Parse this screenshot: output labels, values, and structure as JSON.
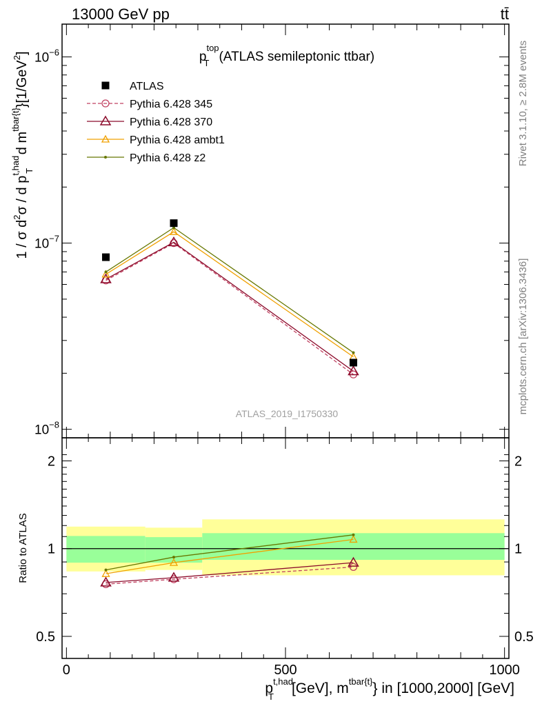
{
  "header": {
    "left": "13000 GeV pp",
    "right": "tt̄"
  },
  "side_labels": {
    "rivet": "Rivet 3.1.10, ≥ 2.8M events",
    "mcplots": "mcplots.cern.ch [arXiv:1306.3436]"
  },
  "chart_data": {
    "type": "line",
    "title": "p_T^top (ATLAS semileptonic ttbar)",
    "title_parts": {
      "main": "p",
      "sub": "T",
      "sup": "top",
      "rest": "(ATLAS semileptonic ttbar)"
    },
    "watermark": "ATLAS_2019_I1750330",
    "xlabel": "p_T^{t,had} [GeV], m^{tbar{t}} in [1000,2000] [GeV]",
    "xlabel_parts": {
      "p": "p",
      "psub": "T",
      "psup": "t,had",
      "mid": "[GeV], m",
      "msup": "tbar{t}",
      "end": "} in [1000,2000] [GeV]"
    },
    "ylabel": "1 / σ d²σ / d p_T^{t,had} d m^{tbar{t}}[1/GeV²]",
    "ylabel_parts": {
      "a": "1 / σ d",
      "a2": "2",
      "b": "σ / d p",
      "bsub": "T",
      "bsup": "t,had",
      "c": " d m",
      "csup": "tbar{t}",
      "d": "}[1/GeV",
      "d2": "2",
      "e": "]"
    },
    "ratio_ylabel": "Ratio to ATLAS",
    "xlim": [
      -10,
      1010
    ],
    "ylim": [
      9e-09,
      1.5e-06
    ],
    "yscale": "log",
    "ratio_ylim": [
      0.42,
      2.4
    ],
    "x_ticks": [
      {
        "value": 0,
        "label": "0"
      },
      {
        "value": 500,
        "label": "500"
      },
      {
        "value": 1000,
        "label": "1000"
      }
    ],
    "y_ticks": [
      {
        "value": 1e-08,
        "base": "10",
        "exp": "−8"
      },
      {
        "value": 1e-07,
        "base": "10",
        "exp": "−7"
      },
      {
        "value": 1e-06,
        "base": "10",
        "exp": "−6"
      }
    ],
    "ratio_ticks": [
      {
        "value": 0.5,
        "label": "0.5"
      },
      {
        "value": 1,
        "label": "1"
      },
      {
        "value": 2,
        "label": "2"
      }
    ],
    "bins": [
      {
        "lo": 0,
        "hi": 180,
        "x": 90
      },
      {
        "lo": 180,
        "hi": 310,
        "x": 245
      },
      {
        "lo": 310,
        "hi": 1000,
        "x": 655
      }
    ],
    "data": {
      "name": "ATLAS",
      "color": "#000000",
      "values": [
        8.4e-08,
        1.28e-07,
        2.28e-08
      ],
      "band_inner": [
        [
          0.895,
          1.105
        ],
        [
          0.895,
          1.095
        ],
        [
          0.915,
          1.13
        ]
      ],
      "band_outer": [
        [
          0.835,
          1.19
        ],
        [
          0.845,
          1.18
        ],
        [
          0.81,
          1.26
        ]
      ]
    },
    "band_colors": {
      "inner": "#99ff99",
      "outer": "#ffff99"
    },
    "series": [
      {
        "name": "Pythia 6.428 345",
        "color": "#c04060",
        "style": "dashed",
        "marker": "circle",
        "values": [
          6.3e-08,
          1e-07,
          1.97e-08
        ],
        "ratio": [
          0.755,
          0.785,
          0.865
        ]
      },
      {
        "name": "Pythia 6.428 370",
        "color": "#8b0a2a",
        "style": "solid",
        "marker": "triangle-big",
        "values": [
          6.4e-08,
          1.01e-07,
          2.05e-08
        ],
        "ratio": [
          0.765,
          0.795,
          0.895
        ]
      },
      {
        "name": "Pythia 6.428 ambt1",
        "color": "#f0a000",
        "style": "solid",
        "marker": "triangle-small",
        "values": [
          6.8e-08,
          1.15e-07,
          2.45e-08
        ],
        "ratio": [
          0.82,
          0.895,
          1.075
        ]
      },
      {
        "name": "Pythia 6.428 z2",
        "color": "#667700",
        "style": "solid",
        "marker": "dot",
        "values": [
          7e-08,
          1.21e-07,
          2.58e-08
        ],
        "ratio": [
          0.845,
          0.935,
          1.115
        ]
      }
    ],
    "legend_placement": "top-left"
  }
}
